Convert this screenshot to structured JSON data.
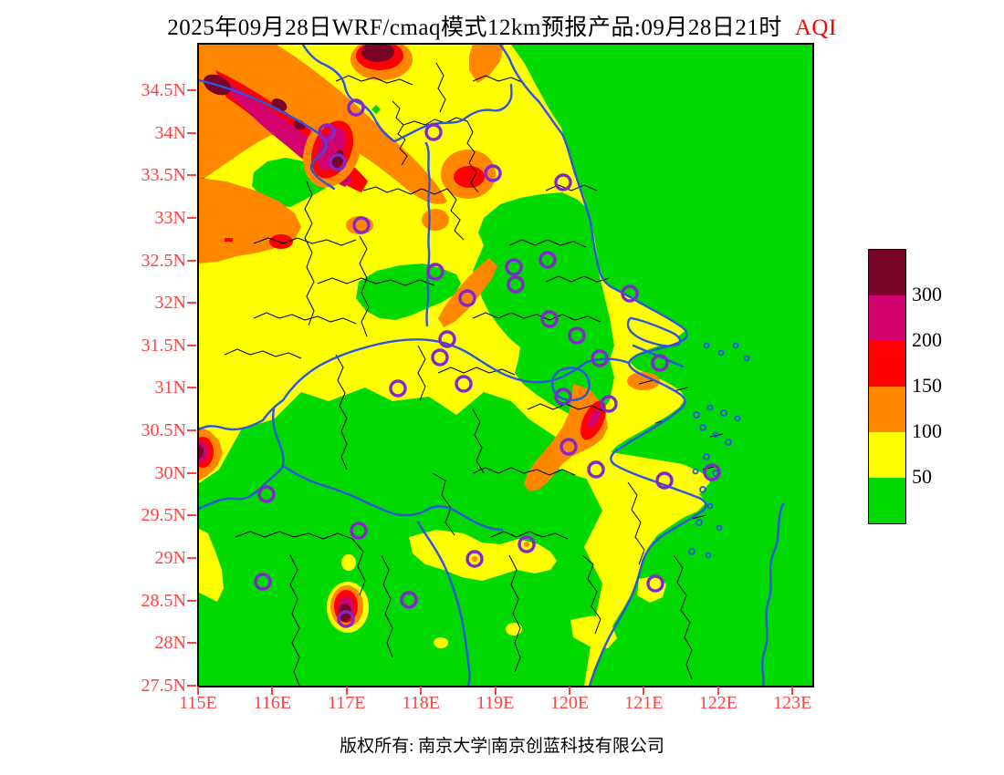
{
  "title": {
    "main": "2025年09月28日WRF/cmaq模式12km预报产品:09月28日21时",
    "metric": "AQI"
  },
  "axes": {
    "y_labels": [
      "34.5N",
      "34N",
      "33.5N",
      "33N",
      "32.5N",
      "32N",
      "31.5N",
      "31N",
      "30.5N",
      "30N",
      "29.5N",
      "29N",
      "28.5N",
      "28N",
      "27.5N"
    ],
    "x_labels": [
      "115E",
      "116E",
      "117E",
      "118E",
      "119E",
      "120E",
      "121E",
      "122E",
      "123E"
    ]
  },
  "legend": {
    "labels": [
      "300",
      "200",
      "150",
      "100",
      "50"
    ],
    "colors": [
      "#7A0428",
      "#D2016E",
      "#FF0000",
      "#FF8700",
      "#FFFF00",
      "#00D900"
    ]
  },
  "footer": {
    "copyright": "版权所有: 南京大学|南京创蓝科技有限公司"
  },
  "colors": {
    "axis_label_red": "#FF4343",
    "title_metric_red": "#FF0000",
    "province_boundary_blue": "#2B55E2",
    "county_boundary_black": "#000000",
    "station_marker_purple": "#8326CF"
  }
}
